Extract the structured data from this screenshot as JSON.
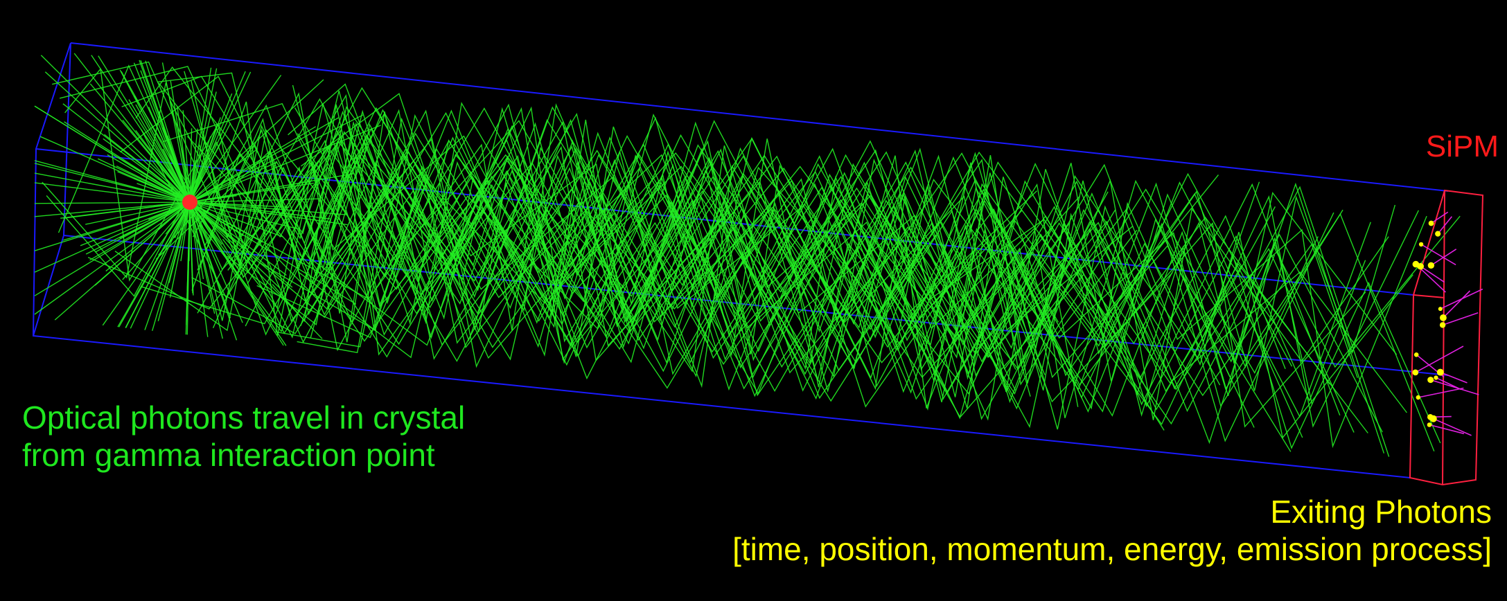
{
  "labels": {
    "sipm": "SiPM",
    "optical_line1": "Optical photons travel in crystal",
    "optical_line2": "from gamma interaction point",
    "exiting_line1": "Exiting Photons",
    "exiting_line2": "[time, position, momentum, energy, emission process]"
  },
  "colors": {
    "background": "#000000",
    "crystal_edges": "#1a1aff",
    "photon_tracks": "#22ee22",
    "sipm_frame": "#ff2040",
    "exiting_tracks": "#e020e0",
    "exit_points": "#ffff00",
    "interaction_point": "#ff2a2a"
  },
  "elements": {
    "crystal": "scintillator-crystal",
    "sensor": "sipm-detector",
    "source": "gamma-interaction-point"
  }
}
